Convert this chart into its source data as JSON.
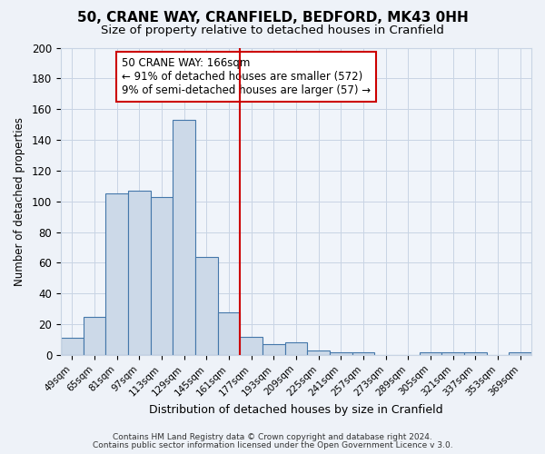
{
  "title": "50, CRANE WAY, CRANFIELD, BEDFORD, MK43 0HH",
  "subtitle": "Size of property relative to detached houses in Cranfield",
  "xlabel": "Distribution of detached houses by size in Cranfield",
  "ylabel": "Number of detached properties",
  "bin_labels": [
    "49sqm",
    "65sqm",
    "81sqm",
    "97sqm",
    "113sqm",
    "129sqm",
    "145sqm",
    "161sqm",
    "177sqm",
    "193sqm",
    "209sqm",
    "225sqm",
    "241sqm",
    "257sqm",
    "273sqm",
    "289sqm",
    "305sqm",
    "321sqm",
    "337sqm",
    "353sqm",
    "369sqm"
  ],
  "bar_values": [
    11,
    25,
    105,
    107,
    103,
    153,
    64,
    28,
    12,
    7,
    8,
    3,
    2,
    2,
    0,
    0,
    2,
    2,
    2,
    0,
    2
  ],
  "bar_color": "#ccd9e8",
  "bar_edgecolor": "#4477aa",
  "vline_pos": 7.5,
  "vline_label": "50 CRANE WAY: 166sqm",
  "annotation_line1": "← 91% of detached houses are smaller (572)",
  "annotation_line2": "9% of semi-detached houses are larger (57) →",
  "vline_color": "#cc0000",
  "ylim": [
    0,
    200
  ],
  "yticks": [
    0,
    20,
    40,
    60,
    80,
    100,
    120,
    140,
    160,
    180,
    200
  ],
  "footnote1": "Contains HM Land Registry data © Crown copyright and database right 2024.",
  "footnote2": "Contains public sector information licensed under the Open Government Licence v 3.0.",
  "bg_color": "#eef2f8",
  "plot_bg_color": "#f0f4fa",
  "grid_color": "#c8d4e4",
  "title_fontsize": 11,
  "subtitle_fontsize": 9.5,
  "annotation_box_edgecolor": "#cc0000",
  "annotation_box_facecolor": "#ffffff"
}
